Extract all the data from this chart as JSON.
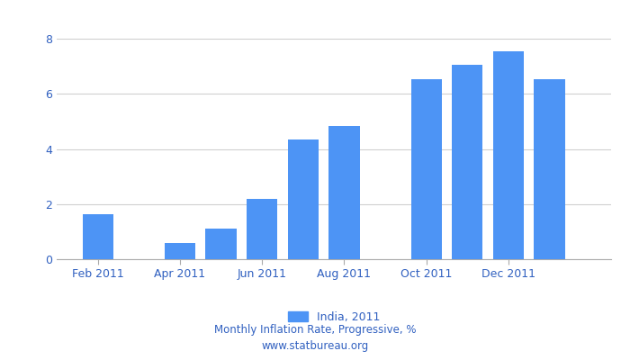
{
  "x_tick_labels": [
    "Feb 2011",
    "Apr 2011",
    "Jun 2011",
    "Aug 2011",
    "Oct 2011",
    "Dec 2011"
  ],
  "x_tick_positions": [
    1,
    3,
    5,
    7,
    9,
    11
  ],
  "bar_positions": [
    1,
    3,
    4,
    5,
    6,
    7,
    9,
    10,
    11,
    12
  ],
  "bar_values": [
    1.65,
    0.6,
    1.1,
    2.2,
    4.35,
    4.85,
    6.55,
    7.05,
    7.55,
    6.55
  ],
  "bar_color": "#4d94f5",
  "xlim_left": 0.0,
  "xlim_right": 13.5,
  "ylim": [
    0,
    8.5
  ],
  "yticks": [
    0,
    2,
    4,
    6,
    8
  ],
  "grid_color": "#d0d0d0",
  "legend_label": "India, 2011",
  "footer_line1": "Monthly Inflation Rate, Progressive, %",
  "footer_line2": "www.statbureau.org",
  "background_color": "#ffffff",
  "bar_width": 0.75,
  "tick_label_color": "#3060c0",
  "footer_color": "#3060c0"
}
